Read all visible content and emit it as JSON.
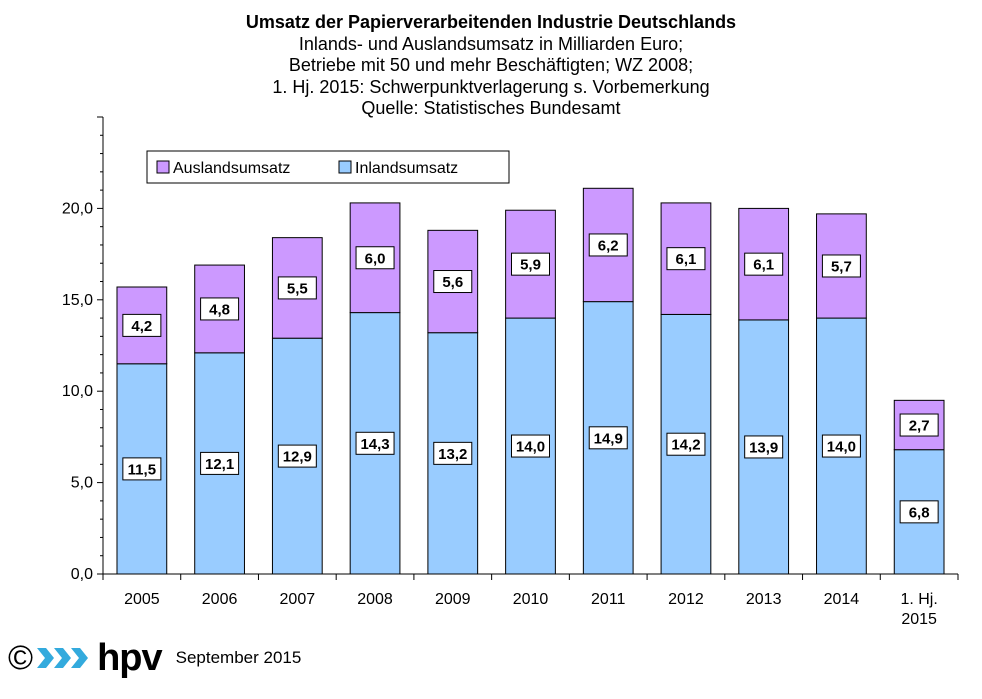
{
  "chart_data": {
    "type": "bar",
    "stacked": true,
    "title": "Umsatz der Papierverarbeitenden Industrie Deutschlands",
    "subtitle_lines": [
      "Inlands- und Auslandsumsatz  in Milliarden Euro;",
      "Betriebe mit 50 und mehr Beschäftigten; WZ 2008;",
      "1. Hj. 2015: Schwerpunktverlagerung  s. Vorbemerkung",
      "Quelle:  Statistisches  Bundesamt"
    ],
    "categories": [
      [
        "2005"
      ],
      [
        "2006"
      ],
      [
        "2007"
      ],
      [
        "2008"
      ],
      [
        "2009"
      ],
      [
        "2010"
      ],
      [
        "2011"
      ],
      [
        "2012"
      ],
      [
        "2013"
      ],
      [
        "2014"
      ],
      [
        "1. Hj.",
        "2015"
      ]
    ],
    "series": [
      {
        "name": "Inlandsumsatz",
        "color": "#99ccff",
        "values": [
          11.5,
          12.1,
          12.9,
          14.3,
          13.2,
          14.0,
          14.9,
          14.2,
          13.9,
          14.0,
          6.8
        ],
        "labels": [
          "11,5",
          "12,1",
          "12,9",
          "14,3",
          "13,2",
          "14,0",
          "14,9",
          "14,2",
          "13,9",
          "14,0",
          "6,8"
        ]
      },
      {
        "name": "Auslandsumsatz",
        "color": "#cc99ff",
        "values": [
          4.2,
          4.8,
          5.5,
          6.0,
          5.6,
          5.9,
          6.2,
          6.1,
          6.1,
          5.7,
          2.7
        ],
        "labels": [
          "4,2",
          "4,8",
          "5,5",
          "6,0",
          "5,6",
          "5,9",
          "6,2",
          "6,1",
          "6,1",
          "5,7",
          "2,7"
        ]
      }
    ],
    "ylim": [
      0,
      25
    ],
    "yticks": [
      0,
      5,
      10,
      15,
      20
    ],
    "ytick_labels": [
      "0,0",
      "5,0",
      "10,0",
      "15,0",
      "20,0"
    ],
    "legend": {
      "position": "top-left",
      "order": [
        "Auslandsumsatz",
        "Inlandsumsatz"
      ]
    },
    "grid": false
  },
  "footer": {
    "copyright_symbol": "©",
    "logo_text": "hpv",
    "date": "September 2015"
  },
  "colors": {
    "inland": "#99ccff",
    "ausland": "#cc99ff",
    "logo_arrows": "#33aadd"
  }
}
